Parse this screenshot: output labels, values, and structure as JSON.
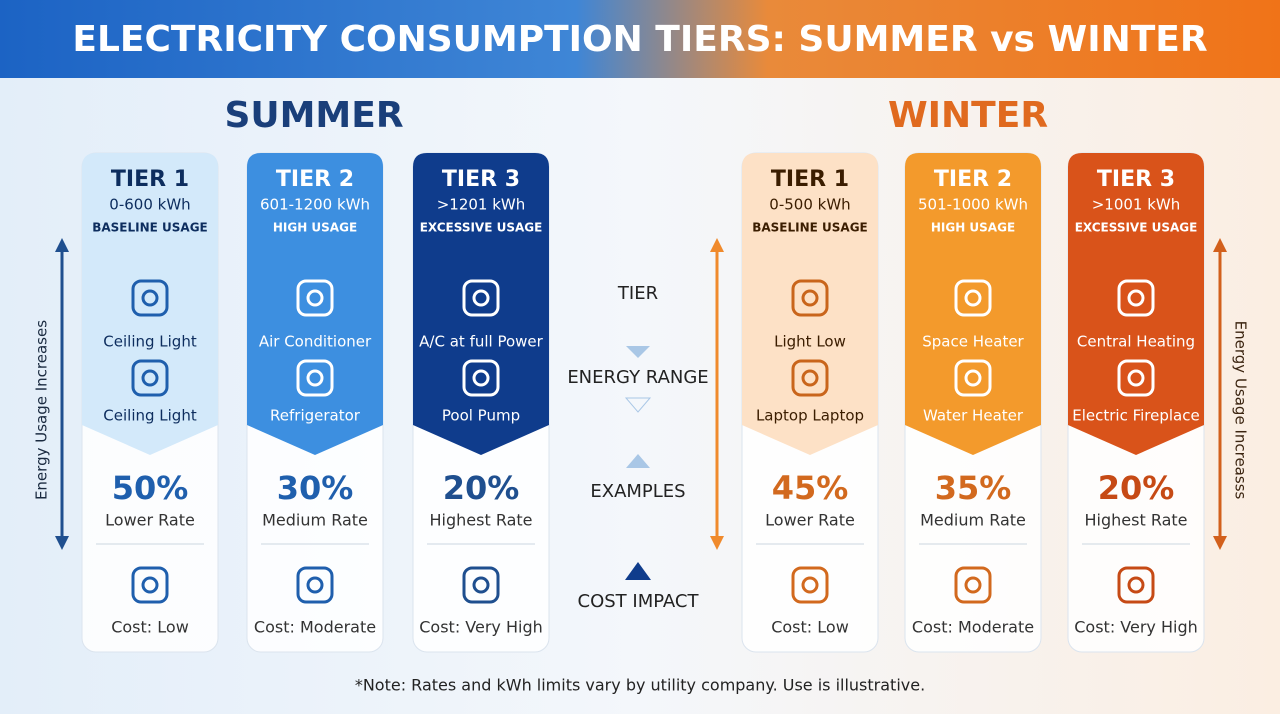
{
  "title": "ELECTRICITY CONSUMPTION TIERS: SUMMER vs WINTER",
  "summer": {
    "title": "SUMMER",
    "tiers": [
      {
        "tier": "TIER 1",
        "range": "0-600 kWh",
        "usage": "BASELINE USAGE",
        "examples": [
          "Ceiling Light",
          "Ceiling Light"
        ],
        "share": "50%",
        "rate": "Lower Rate",
        "cost": "Cost: Low"
      },
      {
        "tier": "TIER 2",
        "range": "601-1200 kWh",
        "usage": "HIGH USAGE",
        "examples": [
          "Air Conditioner",
          "Refrigerator"
        ],
        "share": "30%",
        "rate": "Medium Rate",
        "cost": "Cost: Moderate"
      },
      {
        "tier": "TIER 3",
        "range": ">1201 kWh",
        "usage": "EXCESSIVE USAGE",
        "examples": [
          "A/C at full Power",
          "Pool Pump"
        ],
        "share": "20%",
        "rate": "Highest Rate",
        "cost": "Cost: Very High"
      }
    ]
  },
  "winter": {
    "title": "WINTER",
    "tiers": [
      {
        "tier": "TIER 1",
        "range": "0-500 kWh",
        "usage": "BASELINE USAGE",
        "examples": [
          "Light Low",
          "Laptop Laptop"
        ],
        "share": "45%",
        "rate": "Lower Rate",
        "cost": "Cost: Low"
      },
      {
        "tier": "TIER 2",
        "range": "501-1000 kWh",
        "usage": "HIGH USAGE",
        "examples": [
          "Space Heater",
          "Water Heater"
        ],
        "share": "35%",
        "rate": "Medium Rate",
        "cost": "Cost: Moderate"
      },
      {
        "tier": "TIER 3",
        "range": ">1001 kWh",
        "usage": "EXCESSIVE USAGE",
        "examples": [
          "Central Heating",
          "Electric Fireplace"
        ],
        "share": "20%",
        "rate": "Highest Rate",
        "cost": "Cost: Very High"
      }
    ]
  },
  "center_labels": [
    "TIER",
    "ENERGY RANGE",
    "EXAMPLES",
    "COST IMPACT"
  ],
  "left_axis_label": "Energy Usage Increases",
  "right_axis_label": "Energy Usage Increasss",
  "note": "*Note: Rates and kWh limits vary by utility company. Use is illustrative."
}
